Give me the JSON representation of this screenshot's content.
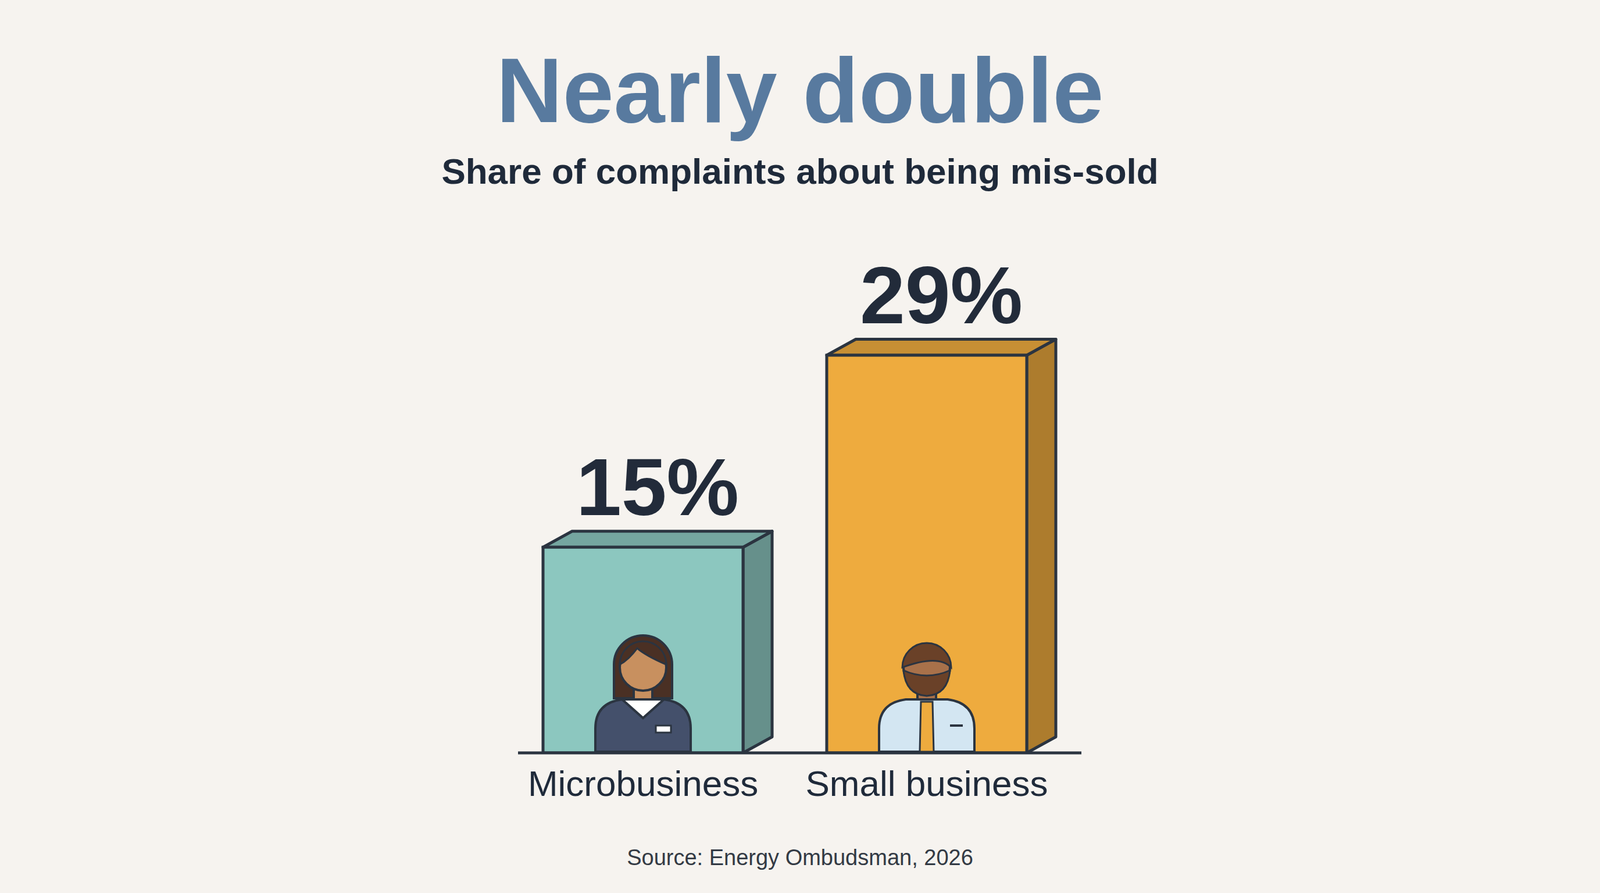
{
  "chart_data": {
    "type": "bar",
    "title": "Nearly double",
    "subtitle": "Share of complaints about being mis-sold",
    "categories": [
      "Microbusiness",
      "Small business"
    ],
    "values": [
      15,
      29
    ],
    "value_labels": [
      "15%",
      "29%"
    ],
    "colors": [
      "#8cc7bf",
      "#eeab3e"
    ],
    "data_labels": true,
    "tick_labels": "x",
    "source": "Source: Energy Ombudsman, 2026"
  }
}
